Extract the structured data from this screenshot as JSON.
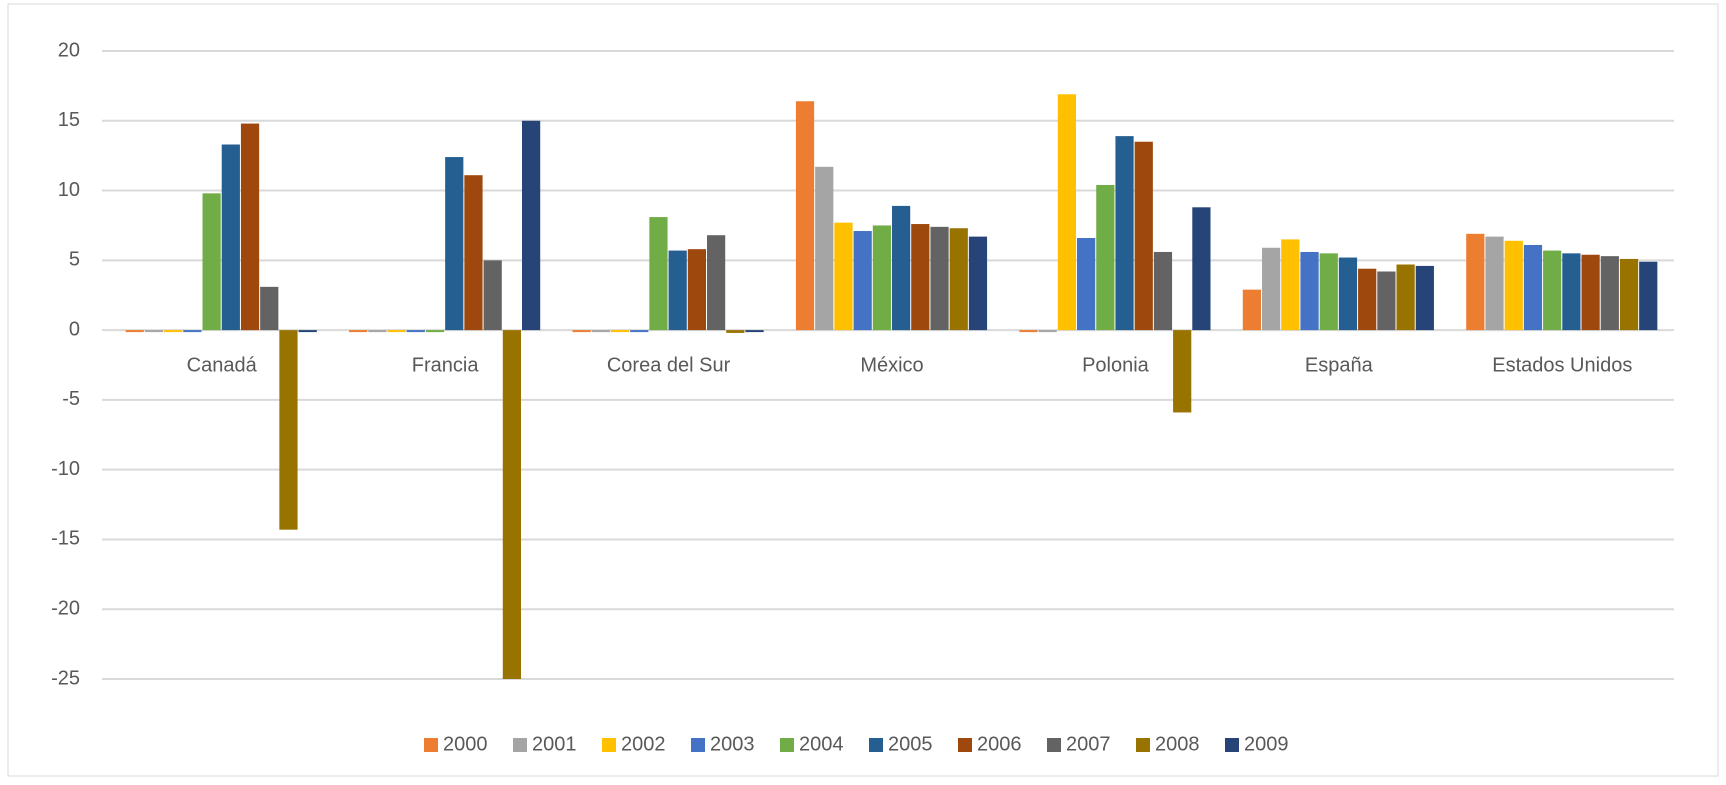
{
  "chart_data": {
    "type": "bar",
    "categories": [
      "Canadá",
      "Francia",
      "Corea del Sur",
      "México",
      "Polonia",
      "España",
      "Estados Unidos"
    ],
    "series": [
      {
        "name": "2000",
        "color": "#ED7D31",
        "values": [
          0,
          0,
          0,
          16.4,
          0,
          2.9,
          6.9
        ]
      },
      {
        "name": "2001",
        "color": "#A5A5A5",
        "values": [
          0,
          0,
          0,
          11.7,
          0,
          5.9,
          6.7
        ]
      },
      {
        "name": "2002",
        "color": "#FFC000",
        "values": [
          0,
          0,
          0,
          7.7,
          16.9,
          6.5,
          6.4
        ]
      },
      {
        "name": "2003",
        "color": "#4472C4",
        "values": [
          0,
          0,
          0,
          7.1,
          6.6,
          5.6,
          6.1
        ]
      },
      {
        "name": "2004",
        "color": "#70AD47",
        "values": [
          9.8,
          0,
          8.1,
          7.5,
          10.4,
          5.5,
          5.7
        ]
      },
      {
        "name": "2005",
        "color": "#255E91",
        "values": [
          13.3,
          12.4,
          5.7,
          8.9,
          13.9,
          5.2,
          5.5
        ]
      },
      {
        "name": "2006",
        "color": "#9E480E",
        "values": [
          14.8,
          11.1,
          5.8,
          7.6,
          13.5,
          4.4,
          5.4
        ]
      },
      {
        "name": "2007",
        "color": "#636363",
        "values": [
          3.1,
          5.0,
          6.8,
          7.4,
          5.6,
          4.2,
          5.3
        ]
      },
      {
        "name": "2008",
        "color": "#997300",
        "values": [
          -14.3,
          -25,
          -0.2,
          7.3,
          -5.9,
          4.7,
          5.1
        ]
      },
      {
        "name": "2009",
        "color": "#264478",
        "values": [
          0,
          15.0,
          0,
          6.7,
          8.8,
          4.6,
          4.9
        ]
      }
    ],
    "ylim": [
      -25,
      20
    ],
    "yticks": [
      -25,
      -20,
      -15,
      -10,
      -5,
      0,
      5,
      10,
      15,
      20
    ],
    "grid": true,
    "legend": "bottom"
  }
}
